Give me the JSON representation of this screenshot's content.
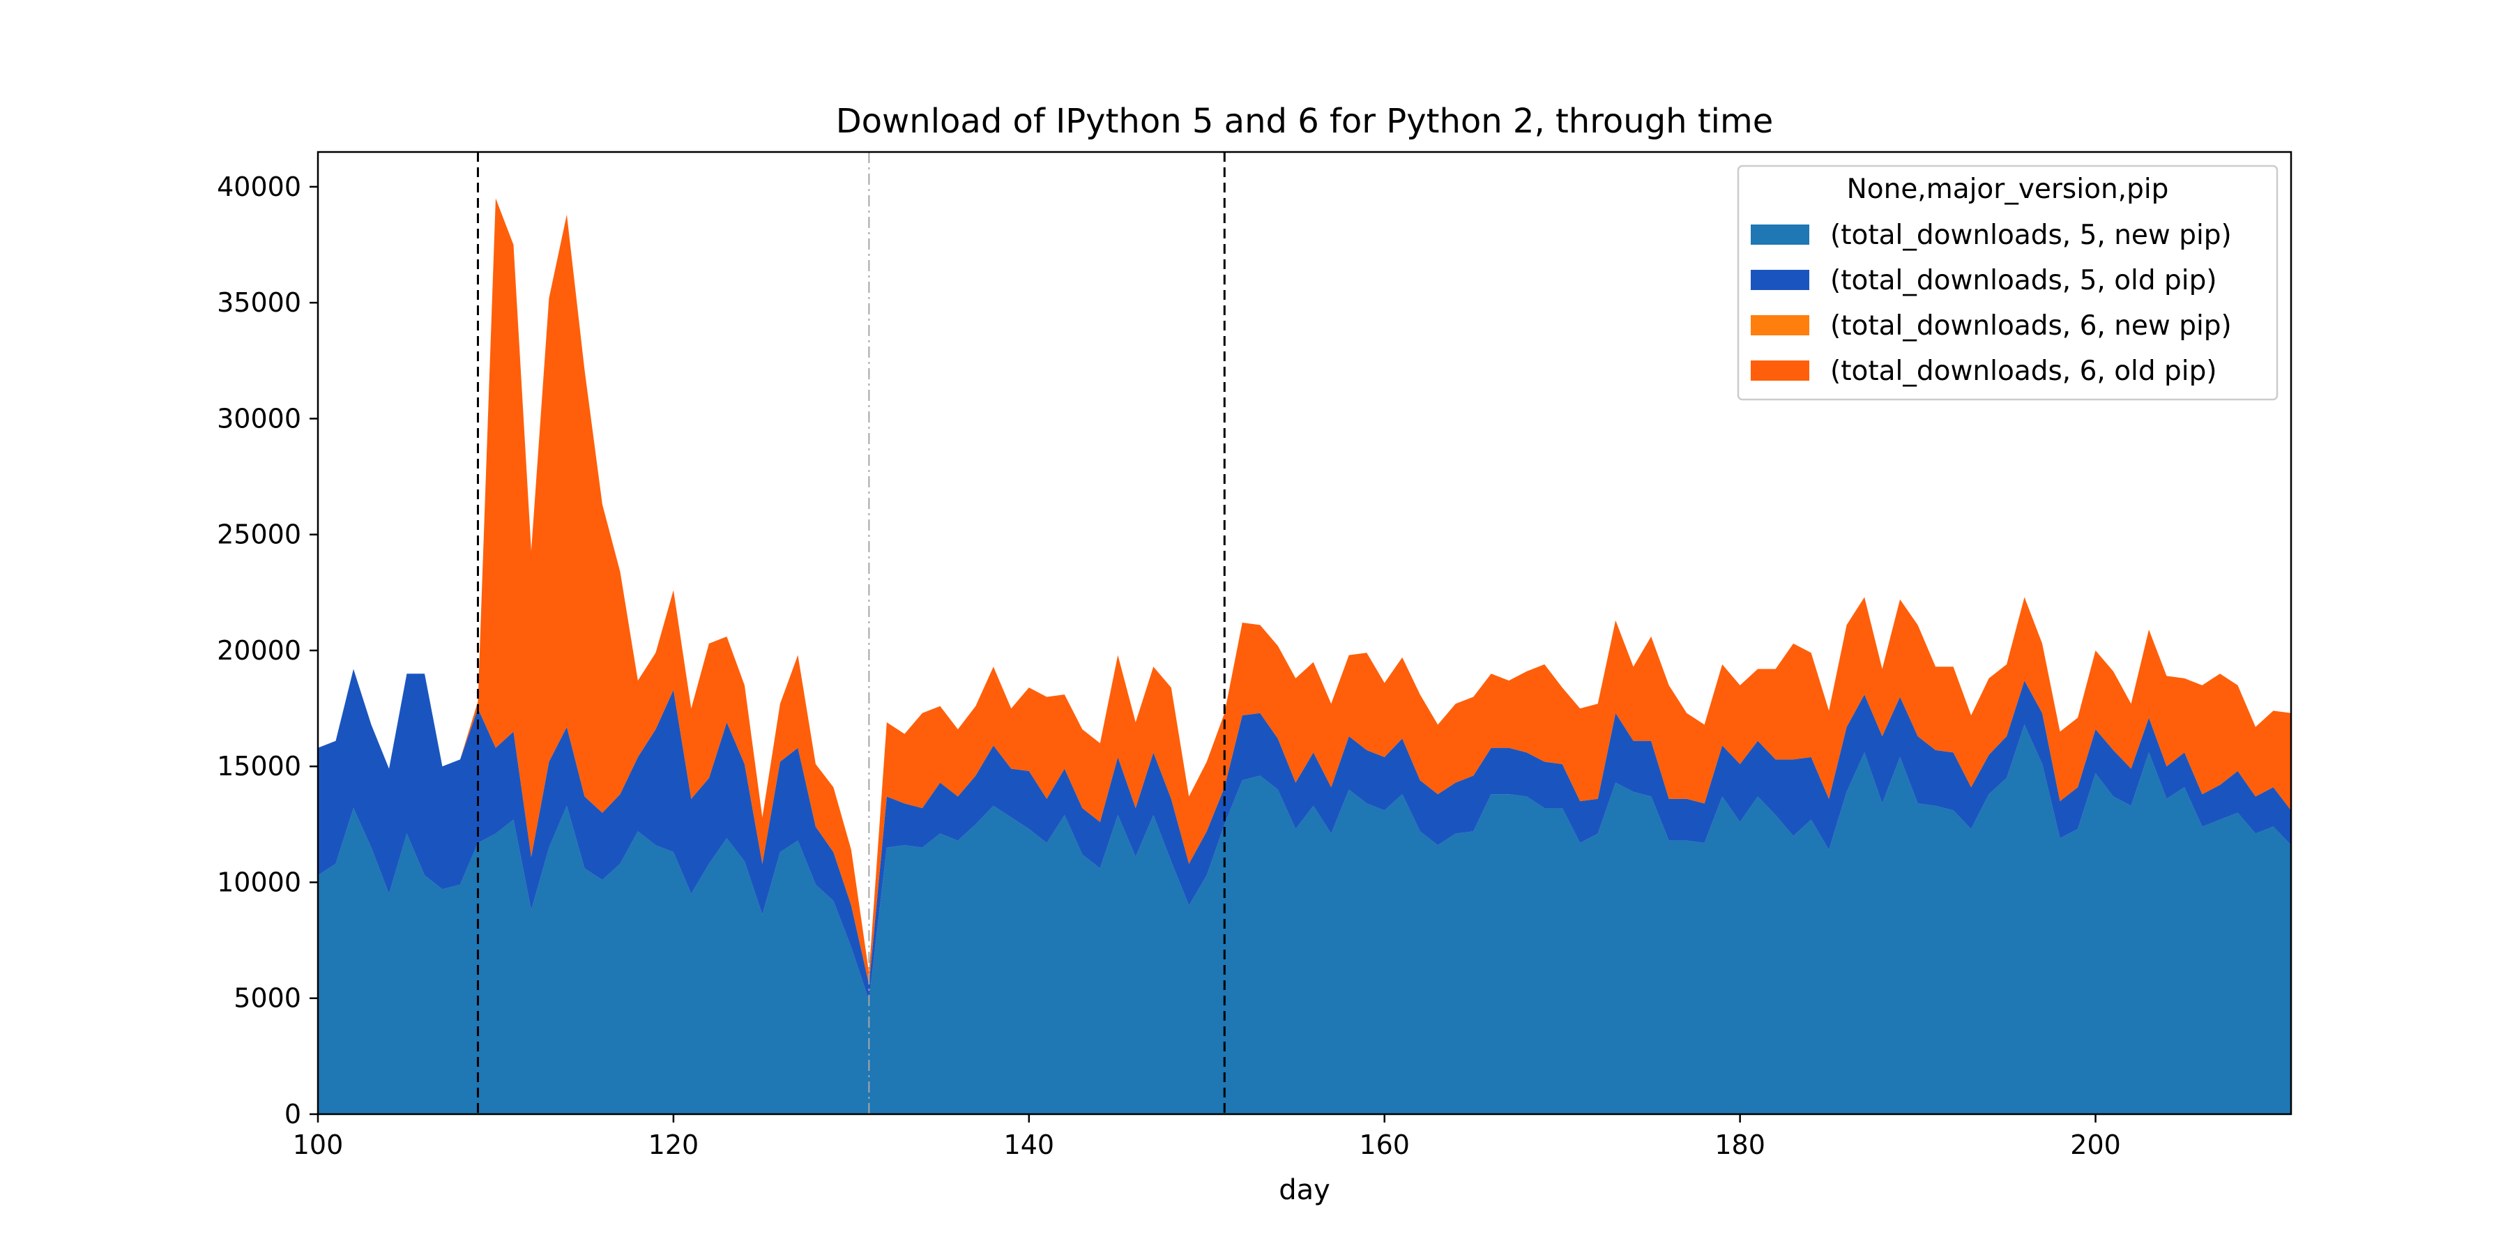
{
  "chart_data": {
    "type": "area",
    "stacked": true,
    "title": "Download of IPython 5 and 6 for Python 2, through time",
    "xlabel": "day",
    "ylabel": "",
    "xlim": [
      100,
      211
    ],
    "ylim": [
      0,
      41500
    ],
    "xticks": [
      100,
      120,
      140,
      160,
      180,
      200
    ],
    "yticks": [
      0,
      5000,
      10000,
      15000,
      20000,
      25000,
      30000,
      35000,
      40000
    ],
    "grid": false,
    "legend": {
      "title": "None,major_version,pip",
      "placement": "top-right"
    },
    "vlines": [
      {
        "x": 109,
        "style": "dashed",
        "color": "#000000"
      },
      {
        "x": 131,
        "style": "dashdot",
        "color": "#a6a6a6"
      },
      {
        "x": 151,
        "style": "dashed",
        "color": "#000000"
      }
    ],
    "x": [
      100,
      101,
      102,
      103,
      104,
      105,
      106,
      107,
      108,
      109,
      110,
      111,
      112,
      113,
      114,
      115,
      116,
      117,
      118,
      119,
      120,
      121,
      122,
      123,
      124,
      125,
      126,
      127,
      128,
      129,
      130,
      131,
      132,
      133,
      134,
      135,
      136,
      137,
      138,
      139,
      140,
      141,
      142,
      143,
      144,
      145,
      146,
      147,
      148,
      149,
      150,
      151,
      152,
      153,
      154,
      155,
      156,
      157,
      158,
      159,
      160,
      161,
      162,
      163,
      164,
      165,
      166,
      167,
      168,
      169,
      170,
      171,
      172,
      173,
      174,
      175,
      176,
      177,
      178,
      179,
      180,
      181,
      182,
      183,
      184,
      185,
      186,
      187,
      188,
      189,
      190,
      191,
      192,
      193,
      194,
      195,
      196,
      197,
      198,
      199,
      200,
      201,
      202,
      203,
      204,
      205,
      206,
      207,
      208,
      209,
      210,
      211
    ],
    "series": [
      {
        "name": "(total_downloads, 5, new pip)",
        "color": "#1f77b4",
        "values": [
          10300,
          10800,
          13200,
          11500,
          9500,
          12100,
          10300,
          9700,
          9900,
          11700,
          12100,
          12700,
          8800,
          11500,
          13300,
          10600,
          10100,
          10800,
          12200,
          11600,
          11300,
          9500,
          10800,
          11900,
          10900,
          8600,
          11300,
          11800,
          9900,
          9200,
          7200,
          4900,
          11500,
          11600,
          11500,
          12100,
          11800,
          12500,
          13300,
          12800,
          12300,
          11700,
          12900,
          11200,
          10600,
          12900,
          11100,
          12900,
          10900,
          9000,
          10300,
          12500,
          14400,
          14600,
          14000,
          12300,
          13300,
          12100,
          14000,
          13400,
          13100,
          13800,
          12200,
          11600,
          12100,
          12200,
          13800,
          13800,
          13700,
          13200,
          13200,
          11700,
          12100,
          14300,
          13900,
          13700,
          11800,
          11800,
          11700,
          13700,
          12600,
          13700,
          12900,
          12000,
          12700,
          11400,
          13900,
          15600,
          13400,
          15400,
          13400,
          13300,
          13100,
          12300,
          13800,
          14500,
          16800,
          15100,
          11900,
          12300,
          14700,
          13700,
          13300,
          15600,
          13600,
          14100,
          12400,
          12700,
          13000,
          12100,
          12400,
          11600
        ]
      },
      {
        "name": "(total_downloads, 5, old pip)",
        "color": "#1a55bf",
        "values": [
          5500,
          5300,
          6000,
          5300,
          5400,
          6900,
          8700,
          5300,
          5400,
          5800,
          3700,
          3800,
          2300,
          3700,
          3400,
          3100,
          2900,
          3000,
          3200,
          5000,
          7000,
          4100,
          3700,
          5000,
          4200,
          2200,
          3900,
          4000,
          2500,
          2100,
          1800,
          700,
          2200,
          1800,
          1700,
          2200,
          1900,
          2100,
          2600,
          2100,
          2500,
          1900,
          2000,
          2000,
          2000,
          2500,
          2100,
          2700,
          2700,
          1800,
          1900,
          1600,
          2800,
          2700,
          2200,
          2000,
          2300,
          2000,
          2300,
          2300,
          2300,
          2400,
          2200,
          2200,
          2200,
          2400,
          2000,
          2000,
          1900,
          2000,
          1900,
          1800,
          1500,
          3000,
          2200,
          2400,
          1800,
          1800,
          1700,
          2200,
          2500,
          2400,
          2400,
          3300,
          2700,
          2200,
          2800,
          2500,
          2900,
          2600,
          2900,
          2400,
          2500,
          1800,
          1700,
          1800,
          1900,
          2200,
          1600,
          1800,
          1900,
          2000,
          1600,
          1500,
          1400,
          1500,
          1400,
          1500,
          1800,
          1600,
          1700,
          1500
        ]
      },
      {
        "name": "(total_downloads, 6, new pip)",
        "color": "#ff7f0e",
        "values": [
          0,
          0,
          0,
          0,
          0,
          0,
          0,
          0,
          0,
          0,
          0,
          0,
          0,
          0,
          0,
          0,
          0,
          0,
          0,
          0,
          0,
          0,
          0,
          0,
          0,
          0,
          0,
          0,
          0,
          0,
          0,
          0,
          0,
          0,
          0,
          0,
          0,
          0,
          0,
          0,
          0,
          0,
          0,
          0,
          0,
          0,
          0,
          0,
          0,
          0,
          0,
          0,
          0,
          0,
          0,
          0,
          0,
          0,
          0,
          0,
          0,
          0,
          0,
          0,
          0,
          0,
          0,
          0,
          0,
          0,
          0,
          0,
          0,
          0,
          0,
          0,
          0,
          0,
          0,
          0,
          0,
          0,
          0,
          0,
          0,
          0,
          0,
          0,
          0,
          0,
          0,
          0,
          0,
          0,
          0,
          0,
          0,
          0,
          0,
          0,
          0,
          0,
          0,
          0,
          0,
          0,
          0,
          0,
          0,
          0,
          0,
          0
        ]
      },
      {
        "name": "(total_downloads, 6, old pip)",
        "color": "#ff5f0a",
        "values": [
          0,
          0,
          0,
          0,
          0,
          0,
          0,
          0,
          0,
          300,
          23700,
          21000,
          13200,
          20000,
          22100,
          18400,
          13300,
          9600,
          3300,
          3300,
          4300,
          3900,
          5800,
          3700,
          3400,
          2000,
          2500,
          4000,
          2700,
          2800,
          2400,
          500,
          3200,
          3000,
          4100,
          3300,
          2900,
          3000,
          3400,
          2600,
          3600,
          4400,
          3200,
          3400,
          3400,
          4400,
          3700,
          3700,
          4800,
          2900,
          3000,
          3200,
          4000,
          3800,
          4000,
          4500,
          3900,
          3600,
          3500,
          4200,
          3200,
          3500,
          3700,
          3000,
          3400,
          3400,
          3200,
          2900,
          3500,
          4200,
          3300,
          4000,
          4100,
          4000,
          3200,
          4500,
          4900,
          3700,
          3400,
          3500,
          3400,
          3100,
          3900,
          5000,
          4500,
          3800,
          4400,
          4200,
          2900,
          4200,
          4800,
          3600,
          3700,
          3100,
          3300,
          3100,
          3600,
          3000,
          3000,
          3000,
          3400,
          3400,
          2800,
          3800,
          3900,
          3200,
          4700,
          4800,
          3700,
          3000,
          3300,
          4200
        ]
      }
    ]
  }
}
